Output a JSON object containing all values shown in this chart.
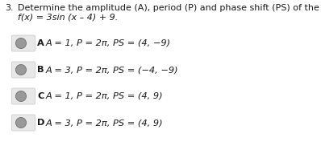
{
  "question_number": "3.",
  "question_text": "Determine the amplitude (A), period (P) and phase shift (PS) of the function",
  "function_text": "f(x) = 3sin (x – 4) + 9.",
  "options": [
    {
      "label": "A",
      "text": "A = 1, P = 2π, PS = (4, −9)"
    },
    {
      "label": "B",
      "text": "A = 3, P = 2π, PS = (−4, −9)"
    },
    {
      "label": "C",
      "text": "A = 1, P = 2π, PS = (4, 9)"
    },
    {
      "label": "D",
      "text": "A = 3, P = 2π, PS = (4, 9)"
    }
  ],
  "background_color": "#ffffff",
  "box_facecolor": "#e8e8e8",
  "box_edgecolor": "#cccccc",
  "circle_face_color": "#999999",
  "circle_edge_color": "#777777",
  "text_color": "#1a1a1a",
  "font_size_question": 8.0,
  "font_size_option": 8.2
}
